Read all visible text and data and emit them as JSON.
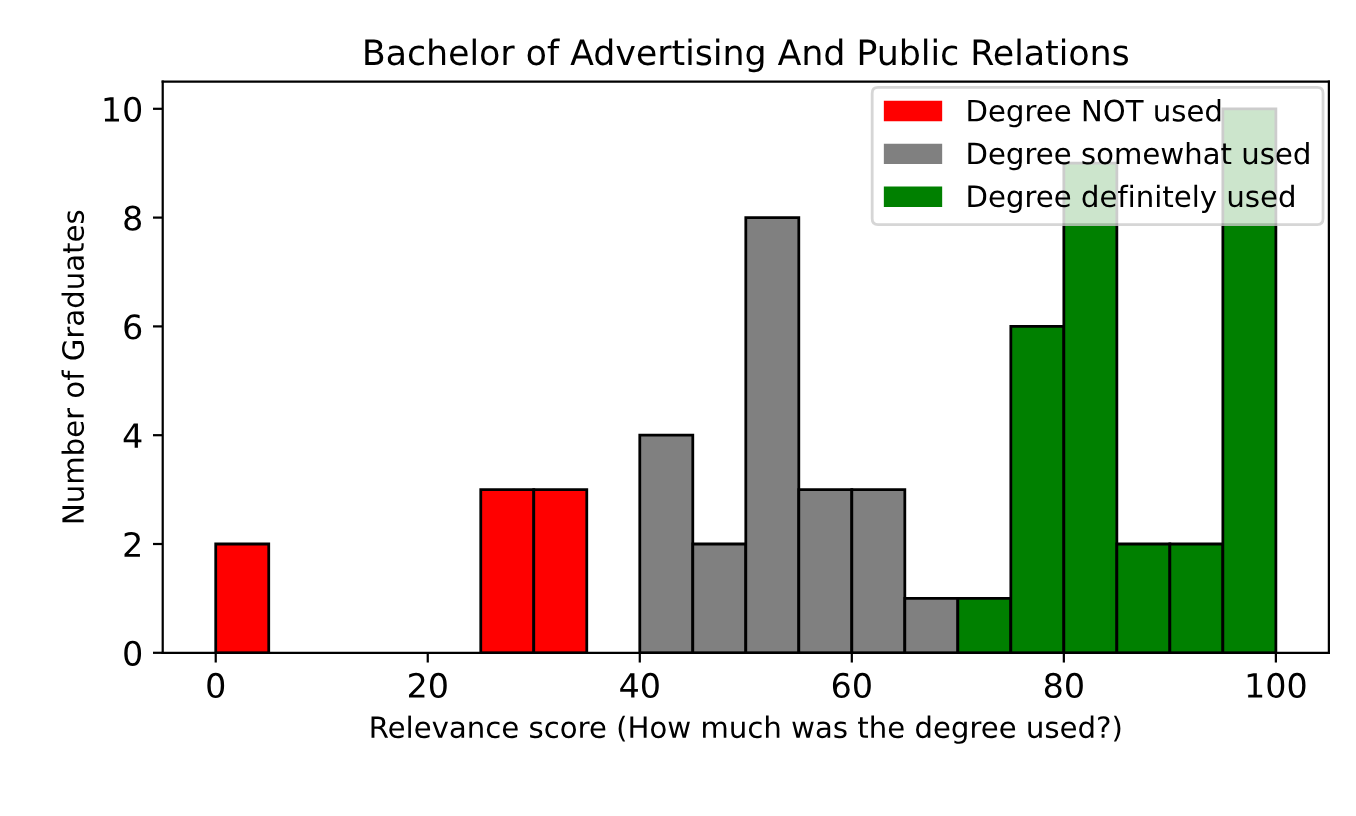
{
  "chart_data": {
    "type": "histogram",
    "title": "Bachelor of Advertising And Public Relations",
    "xlabel": "Relevance score (How much was the degree used?)",
    "ylabel": "Number of Graduates",
    "bins": [
      0,
      5,
      10,
      15,
      20,
      25,
      30,
      35,
      40,
      45,
      50,
      55,
      60,
      65,
      70,
      75,
      80,
      85,
      90,
      95,
      100
    ],
    "series": [
      {
        "name": "Degree NOT used",
        "color": "#ff0000",
        "values": [
          2,
          null,
          null,
          null,
          null,
          3,
          3,
          null,
          null,
          null,
          null,
          null,
          null,
          null,
          null,
          null,
          null,
          null,
          null,
          null
        ]
      },
      {
        "name": "Degree somewhat used",
        "color": "#808080",
        "values": [
          null,
          null,
          null,
          null,
          null,
          null,
          null,
          null,
          4,
          2,
          8,
          3,
          3,
          1,
          null,
          null,
          null,
          null,
          null,
          null
        ]
      },
      {
        "name": "Degree definitely used",
        "color": "#008000",
        "values": [
          null,
          null,
          null,
          null,
          null,
          null,
          null,
          null,
          null,
          null,
          null,
          null,
          null,
          null,
          1,
          6,
          9,
          2,
          2,
          10
        ]
      }
    ],
    "xlim": [
      -5,
      105
    ],
    "ylim": [
      0,
      10.5
    ],
    "xticks": [
      0,
      20,
      40,
      60,
      80,
      100
    ],
    "yticks": [
      0,
      2,
      4,
      6,
      8,
      10
    ],
    "grid": false,
    "legend": "top right"
  }
}
